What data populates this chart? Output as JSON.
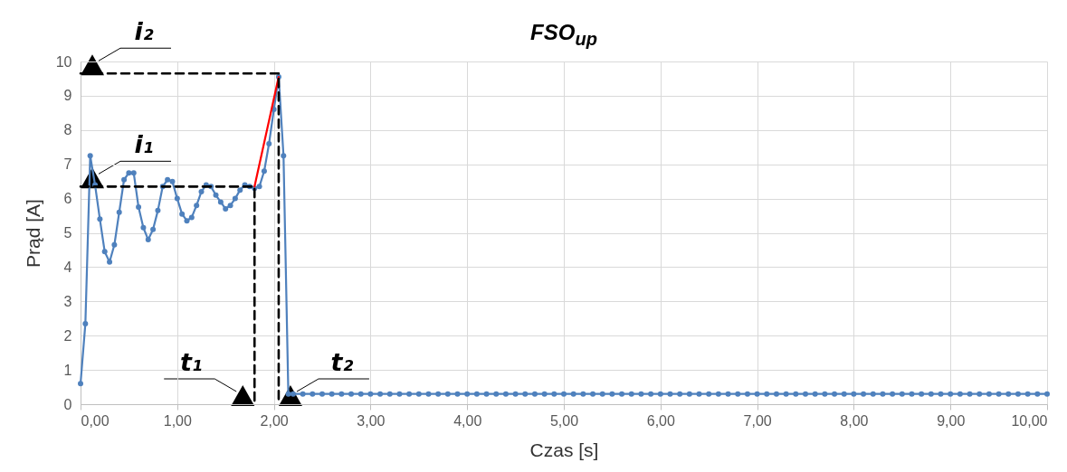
{
  "chart_data": {
    "type": "line",
    "title": "FSO$_{up}$",
    "xlabel": "Czas [s]",
    "ylabel": "Prąd [A]",
    "xlim": [
      0,
      10
    ],
    "ylim": [
      0,
      10
    ],
    "xticks": [
      {
        "value": 0,
        "label": "0,00"
      },
      {
        "value": 1,
        "label": "1,00"
      },
      {
        "value": 2,
        "label": "2,00"
      },
      {
        "value": 3,
        "label": "3,00"
      },
      {
        "value": 4,
        "label": "4,00"
      },
      {
        "value": 5,
        "label": "5,00"
      },
      {
        "value": 6,
        "label": "6,00"
      },
      {
        "value": 7,
        "label": "7,00"
      },
      {
        "value": 8,
        "label": "8,00"
      },
      {
        "value": 9,
        "label": "9,00"
      },
      {
        "value": 10,
        "label": "10,00"
      }
    ],
    "yticks": [
      0,
      1,
      2,
      3,
      4,
      5,
      6,
      7,
      8,
      9,
      10
    ],
    "grid": true,
    "series": [
      {
        "color": "#4f81bd",
        "marker": "circle",
        "line_style": "solid",
        "x": [
          0,
          0.05,
          0.1,
          0.15,
          0.2,
          0.25,
          0.3,
          0.35,
          0.4,
          0.45,
          0.5,
          0.55,
          0.6,
          0.65,
          0.7,
          0.75,
          0.8,
          0.85,
          0.9,
          0.95,
          1,
          1.05,
          1.1,
          1.15,
          1.2,
          1.25,
          1.3,
          1.35,
          1.4,
          1.45,
          1.5,
          1.55,
          1.6,
          1.65,
          1.7,
          1.75,
          1.8,
          1.85,
          1.9,
          1.95,
          2,
          2.05,
          2.1,
          2.15,
          2.2,
          2.3,
          2.4,
          2.5,
          2.6,
          2.7,
          2.8,
          2.9,
          3,
          3.1,
          3.2,
          3.3,
          3.4,
          3.5,
          3.6,
          3.7,
          3.8,
          3.9,
          4,
          4.1,
          4.2,
          4.3,
          4.4,
          4.5,
          4.6,
          4.7,
          4.8,
          4.9,
          5,
          5.1,
          5.2,
          5.3,
          5.4,
          5.5,
          5.6,
          5.7,
          5.8,
          5.9,
          6,
          6.1,
          6.2,
          6.3,
          6.4,
          6.5,
          6.6,
          6.7,
          6.8,
          6.9,
          7,
          7.1,
          7.2,
          7.3,
          7.4,
          7.5,
          7.6,
          7.7,
          7.8,
          7.9,
          8,
          8.1,
          8.2,
          8.3,
          8.4,
          8.5,
          8.6,
          8.7,
          8.8,
          8.9,
          9,
          9.1,
          9.2,
          9.3,
          9.4,
          9.5,
          9.6,
          9.7,
          9.8,
          9.9,
          10
        ],
        "values": [
          0.6,
          2.35,
          7.25,
          6.4,
          5.4,
          4.45,
          4.15,
          4.65,
          5.6,
          6.55,
          6.75,
          6.75,
          5.75,
          5.15,
          4.8,
          5.1,
          5.65,
          6.35,
          6.55,
          6.5,
          6,
          5.55,
          5.35,
          5.45,
          5.8,
          6.2,
          6.4,
          6.35,
          6.1,
          5.9,
          5.7,
          5.8,
          6,
          6.25,
          6.4,
          6.35,
          6.3,
          6.35,
          6.8,
          7.6,
          8.6,
          9.55,
          7.25,
          0.3,
          0.3,
          0.3,
          0.3,
          0.3,
          0.3,
          0.3,
          0.3,
          0.3,
          0.3,
          0.3,
          0.3,
          0.3,
          0.3,
          0.3,
          0.3,
          0.3,
          0.3,
          0.3,
          0.3,
          0.3,
          0.3,
          0.3,
          0.3,
          0.3,
          0.3,
          0.3,
          0.3,
          0.3,
          0.3,
          0.3,
          0.3,
          0.3,
          0.3,
          0.3,
          0.3,
          0.3,
          0.3,
          0.3,
          0.3,
          0.3,
          0.3,
          0.3,
          0.3,
          0.3,
          0.3,
          0.3,
          0.3,
          0.3,
          0.3,
          0.3,
          0.3,
          0.3,
          0.3,
          0.3,
          0.3,
          0.3,
          0.3,
          0.3,
          0.3,
          0.3,
          0.3,
          0.3,
          0.3,
          0.3,
          0.3,
          0.3,
          0.3,
          0.3,
          0.3,
          0.3,
          0.3,
          0.3,
          0.3,
          0.3,
          0.3,
          0.3,
          0.3,
          0.3,
          0.3
        ]
      },
      {
        "color": "#ff0000",
        "marker": "none",
        "line_style": "solid",
        "x": [
          1.8,
          2.05
        ],
        "values": [
          6.35,
          9.55
        ]
      },
      {
        "color": "#000000",
        "marker": "none",
        "line_style": "dashed",
        "x": [
          0,
          2.05,
          2.05
        ],
        "values": [
          9.65,
          9.65,
          0
        ]
      },
      {
        "color": "#000000",
        "marker": "none",
        "line_style": "dashed",
        "x": [
          0,
          1.8,
          1.8
        ],
        "values": [
          6.35,
          6.35,
          0
        ]
      }
    ],
    "annotations": [
      {
        "text": "i₂",
        "x": 0,
        "y": 9.65
      },
      {
        "text": "i₁",
        "x": 0,
        "y": 6.35
      },
      {
        "text": "t₁",
        "x": 1.8,
        "y": 0
      },
      {
        "text": "t₂",
        "x": 2.05,
        "y": 0
      }
    ]
  }
}
